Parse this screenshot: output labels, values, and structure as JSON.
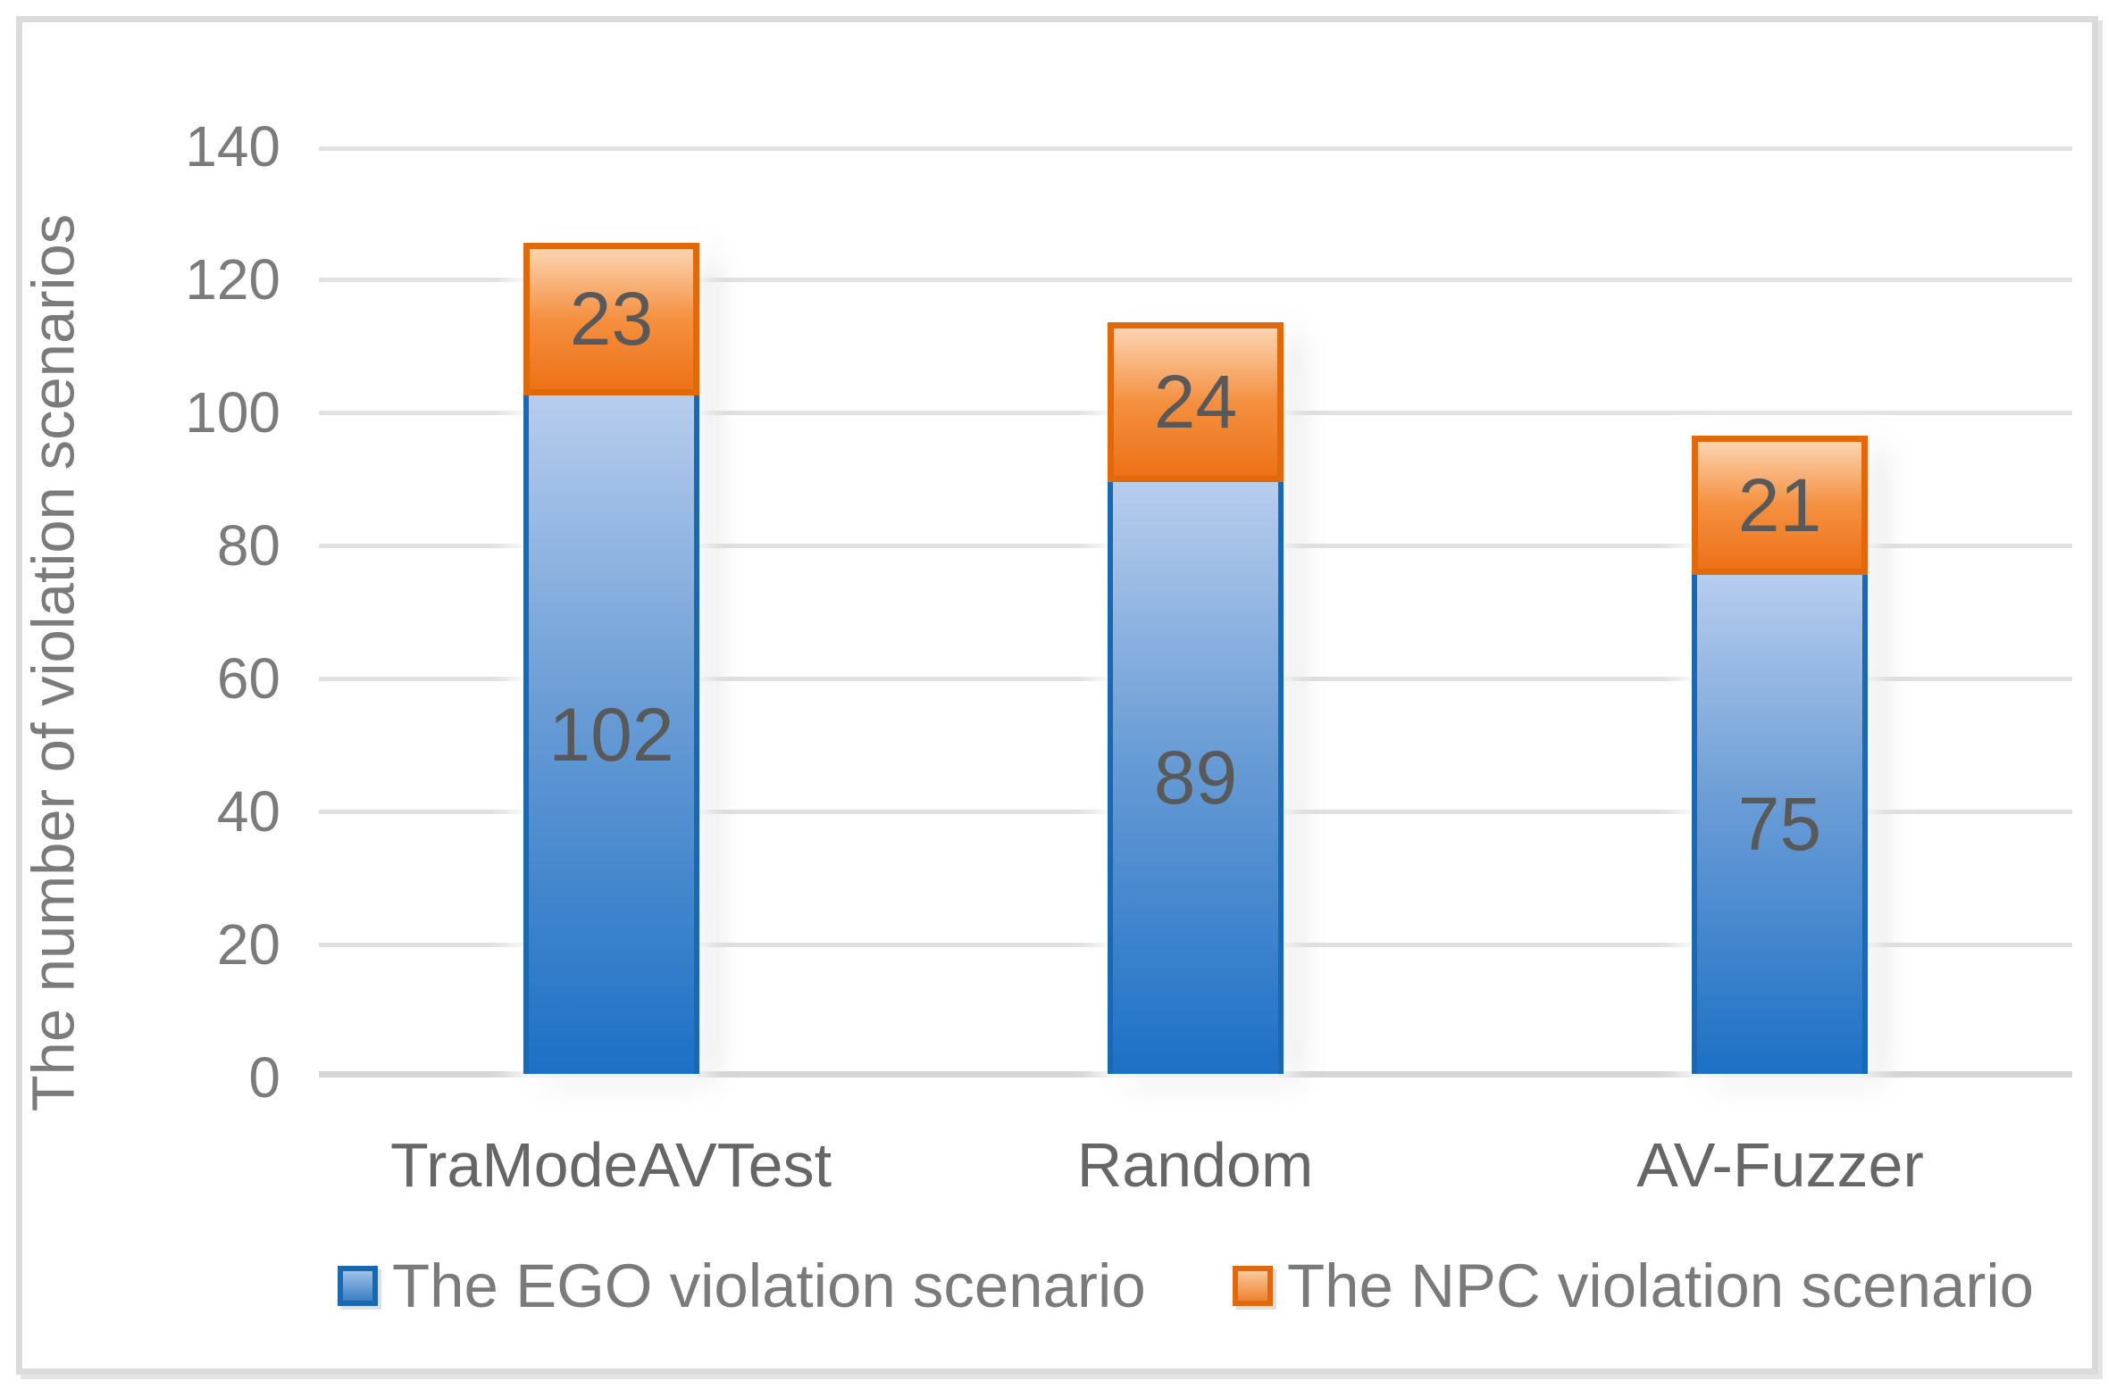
{
  "chart_data": {
    "type": "bar",
    "stacked": true,
    "title": "",
    "xlabel": "",
    "ylabel": "The number of violation scenarios",
    "ylim": [
      0,
      140
    ],
    "yticks": [
      0,
      20,
      40,
      60,
      80,
      100,
      120,
      140
    ],
    "grid": true,
    "legend_position": "bottom",
    "categories": [
      "TraModeAVTest",
      "Random",
      "AV-Fuzzer"
    ],
    "series": [
      {
        "name": "The EGO violation scenario",
        "values": [
          102,
          89,
          75
        ],
        "fill_top": "#B7CDEE",
        "fill_mid": "#6B9DD6",
        "fill_bottom": "#1C70C6",
        "border": "#1A68B2",
        "swatch_top": "#9EC1E9",
        "swatch_bottom": "#3C7FC4"
      },
      {
        "name": "The NPC violation scenario",
        "values": [
          23,
          24,
          21
        ],
        "fill_top": "#FCD4B1",
        "fill_mid": "#F49040",
        "fill_bottom": "#EE7117",
        "border": "#E2690B",
        "swatch_top": "#FAC79B",
        "swatch_bottom": "#F0832F"
      }
    ]
  },
  "colors": {
    "background": "#FFFFFF",
    "frame_border": "#DBDBDB",
    "gridline": "#E1E1E1",
    "baseline": "#D6D6D6",
    "axis_text": "#7B7B7B",
    "category_text": "#666666",
    "data_label_text": "#595959",
    "legend_text": "#7A7A7A"
  }
}
